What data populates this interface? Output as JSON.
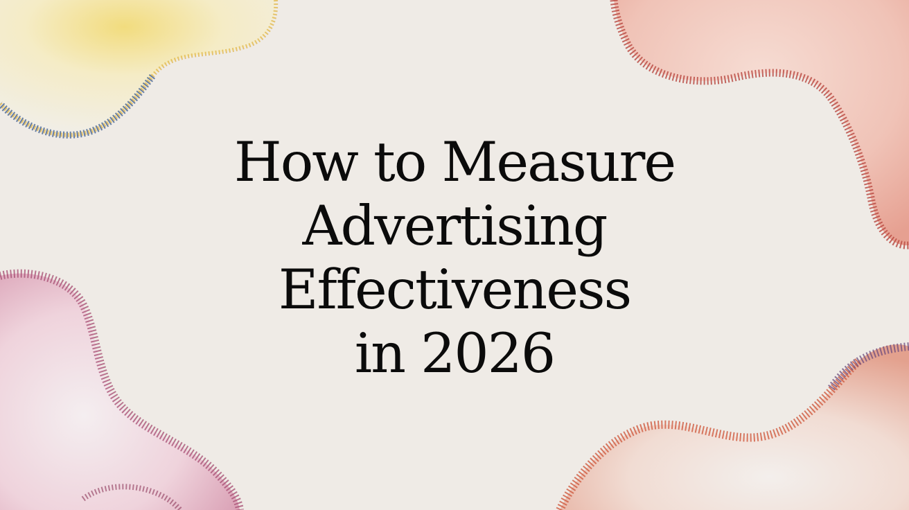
{
  "title_lines": [
    "How to Measure",
    "Advertising",
    "Effectiveness",
    "in 2026"
  ],
  "background_color": "#efebe6",
  "text_color": "#0b0b0b",
  "decorations": [
    {
      "name": "watercolor-blob-top-left",
      "fill": "#f4e7b0",
      "edge": "#3c5a8a"
    },
    {
      "name": "watercolor-blob-top-right",
      "fill": "#f3d2c8",
      "edge": "#c0463a"
    },
    {
      "name": "watercolor-blob-bottom-left",
      "fill": "#f0d6df",
      "edge": "#9a3e63"
    },
    {
      "name": "watercolor-blob-bottom-right",
      "fill": "#f3ddd3",
      "edge": "#d2543e"
    }
  ]
}
